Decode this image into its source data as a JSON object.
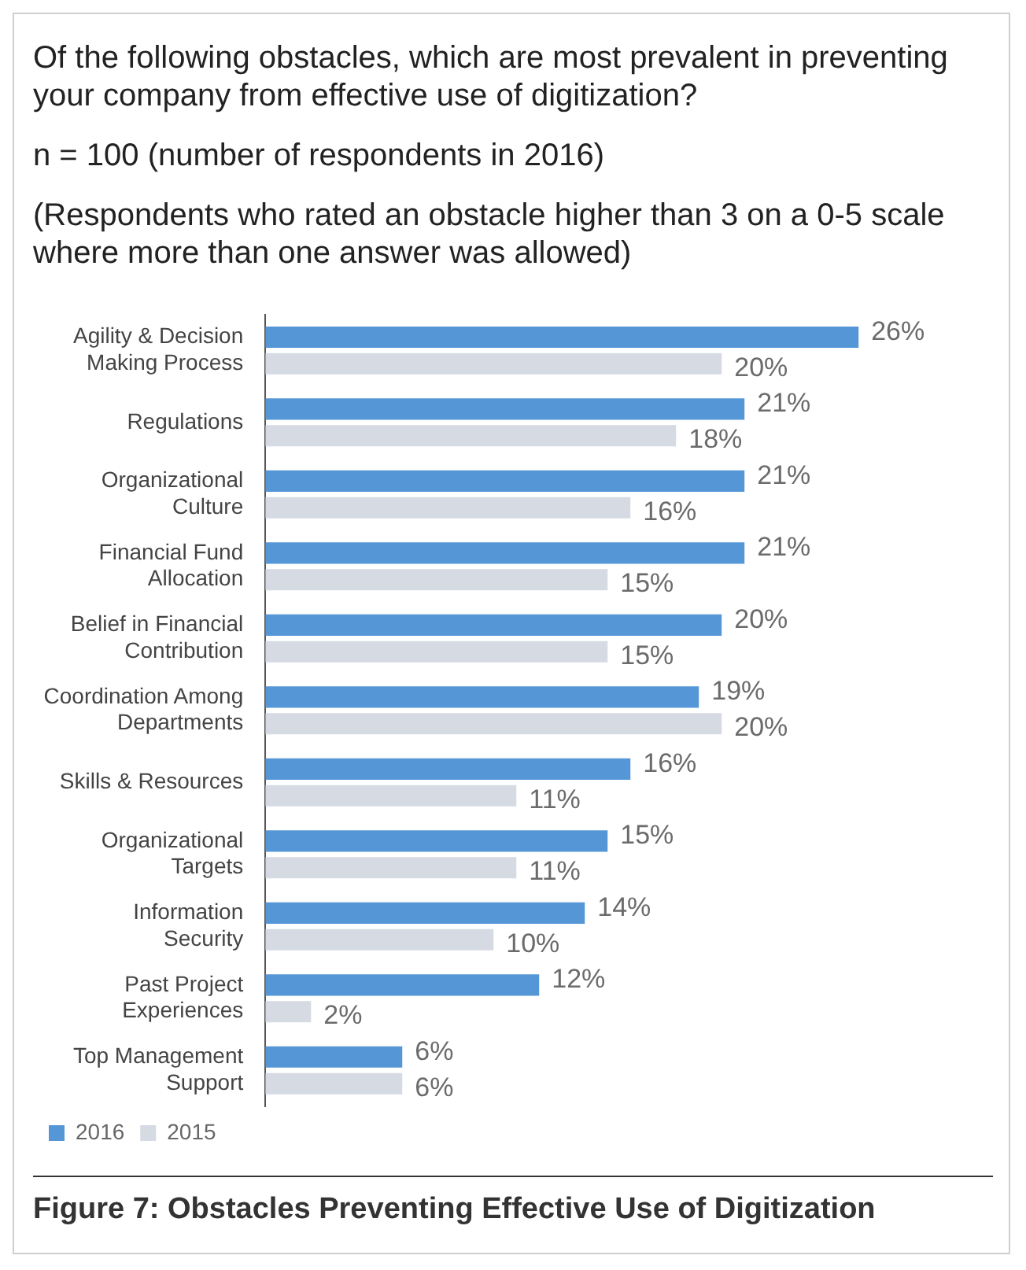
{
  "chart_data": {
    "type": "bar",
    "orientation": "horizontal",
    "title": "Of the following obstacles, which are most prevalent in preventing your company from effective use of digitization?",
    "subtitle": "n = 100 (number of respondents in 2016)",
    "annotations": [
      "(Respondents who rated an obstacle higher than 3 on a 0-5 scale where more than one answer was allowed)",
      "Figure 7: Obstacles Preventing Effective Use of Digitization"
    ],
    "categories": [
      "Agility & Decision Making Process",
      "Regulations",
      "Organizational Culture",
      "Financial Fund Allocation",
      "Belief in Financial Contribution",
      "Coordination Among Departments",
      "Skills & Resources",
      "Organizational Targets",
      "Information Security",
      "Past Project Experiences",
      "Top Management Support"
    ],
    "series": [
      {
        "name": "2016",
        "color": "#5596d6",
        "values": [
          26,
          21,
          21,
          21,
          20,
          19,
          16,
          15,
          14,
          12,
          6
        ],
        "value_labels": [
          "26%",
          "21%",
          "21%",
          "21%",
          "20%",
          "19%",
          "16%",
          "15%",
          "14%",
          "12%",
          "6%"
        ]
      },
      {
        "name": "2015",
        "color": "#d5dae3",
        "values": [
          20,
          18,
          16,
          15,
          15,
          20,
          11,
          11,
          10,
          2,
          6
        ],
        "value_labels": [
          "20%",
          "18%",
          "16%",
          "15%",
          "15%",
          "20%",
          "11%",
          "11%",
          "10%",
          "2%",
          "6%"
        ]
      }
    ],
    "legend": "bottom left"
  }
}
